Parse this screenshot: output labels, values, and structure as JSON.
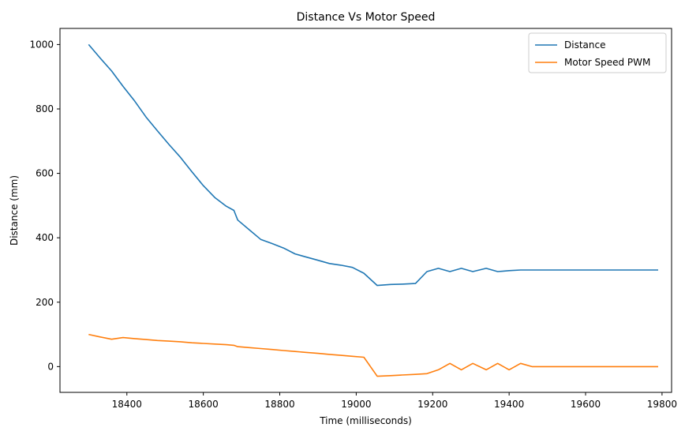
{
  "chart_data": {
    "type": "line",
    "title": "Distance Vs Motor Speed",
    "xlabel": "Time (milliseconds)",
    "ylabel": "Distance (mm)",
    "xlim": [
      18225,
      19825
    ],
    "ylim": [
      -80,
      1050
    ],
    "xticks": [
      18400,
      18600,
      18800,
      19000,
      19200,
      19400,
      19600,
      19800
    ],
    "yticks": [
      0,
      200,
      400,
      600,
      800,
      1000
    ],
    "grid": false,
    "legend_position": "top-right",
    "series": [
      {
        "name": "Distance",
        "color": "#1f77b4",
        "x": [
          18300,
          18330,
          18360,
          18390,
          18420,
          18450,
          18480,
          18510,
          18540,
          18570,
          18600,
          18630,
          18660,
          18680,
          18690,
          18720,
          18750,
          18780,
          18810,
          18840,
          18870,
          18900,
          18930,
          18960,
          18990,
          19020,
          19055,
          19090,
          19120,
          19155,
          19185,
          19215,
          19245,
          19275,
          19305,
          19340,
          19370,
          19400,
          19430,
          19460,
          19500,
          19550,
          19600,
          19650,
          19700,
          19750,
          19790
        ],
        "y": [
          1000,
          958,
          918,
          870,
          825,
          775,
          732,
          690,
          650,
          605,
          562,
          525,
          498,
          485,
          455,
          425,
          395,
          382,
          368,
          350,
          340,
          330,
          320,
          315,
          308,
          290,
          252,
          255,
          256,
          258,
          295,
          305,
          295,
          305,
          295,
          305,
          295,
          298,
          300,
          300,
          300,
          300,
          300,
          300,
          300,
          300,
          300
        ]
      },
      {
        "name": "Motor Speed PWM",
        "color": "#ff7f0e",
        "x": [
          18300,
          18330,
          18360,
          18390,
          18420,
          18450,
          18480,
          18510,
          18540,
          18570,
          18600,
          18630,
          18660,
          18680,
          18690,
          18720,
          18750,
          18780,
          18810,
          18840,
          18870,
          18900,
          18930,
          18960,
          18990,
          19020,
          19055,
          19090,
          19120,
          19155,
          19185,
          19215,
          19245,
          19275,
          19305,
          19340,
          19370,
          19400,
          19430,
          19460,
          19500,
          19550,
          19600,
          19650,
          19700,
          19750,
          19790
        ],
        "y": [
          100,
          92,
          85,
          90,
          87,
          84,
          81,
          79,
          77,
          74,
          72,
          70,
          68,
          66,
          62,
          59,
          56,
          53,
          50,
          47,
          44,
          41,
          38,
          35,
          32,
          29,
          -30,
          -28,
          -26,
          -24,
          -22,
          -10,
          10,
          -10,
          10,
          -10,
          10,
          -10,
          10,
          0,
          0,
          0,
          0,
          0,
          0,
          0,
          0
        ]
      }
    ]
  }
}
